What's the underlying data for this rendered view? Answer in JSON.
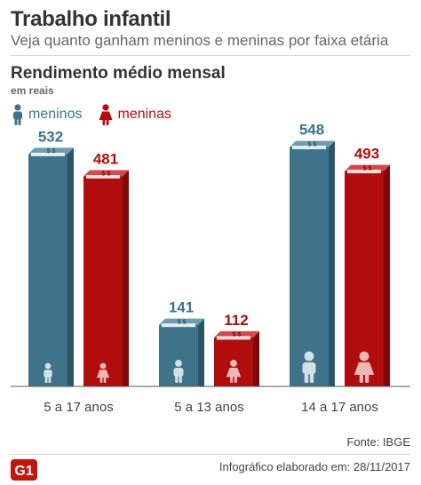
{
  "header": {
    "title": "Trabalho infantil",
    "subtitle": "Veja quanto ganham meninos e meninas por faixa etária"
  },
  "chart_header": {
    "title": "Rendimento médio mensal",
    "unit": "em reais"
  },
  "legend": {
    "boys_label": "meninos",
    "girls_label": "meninas"
  },
  "colors": {
    "boys": "#3e7389",
    "boys_dark": "#2b5567",
    "boys_top": "#6e9db0",
    "girls": "#b10d0d",
    "girls_dark": "#800808",
    "girls_top": "#d44a4a",
    "boys_icon": "#d3e1e7",
    "girls_icon": "#f0b7b7",
    "legend_boys": "#3e7389",
    "legend_girls": "#b10d0d"
  },
  "chart_data": {
    "type": "bar",
    "categories": [
      "5 a 17 anos",
      "5 a 13 anos",
      "14 a 17 anos"
    ],
    "series": [
      {
        "name": "meninos",
        "values": [
          532,
          141,
          548
        ]
      },
      {
        "name": "meninas",
        "values": [
          481,
          112,
          493
        ]
      }
    ],
    "ylabel": "em reais",
    "ylim": [
      0,
      600
    ],
    "legend": "top-left",
    "grid": false
  },
  "money_symbol": "$ $",
  "footer": {
    "source": "Fonte: IBGE",
    "logo": "G1",
    "date": "Infográfico elaborado em: 28/11/2017"
  }
}
